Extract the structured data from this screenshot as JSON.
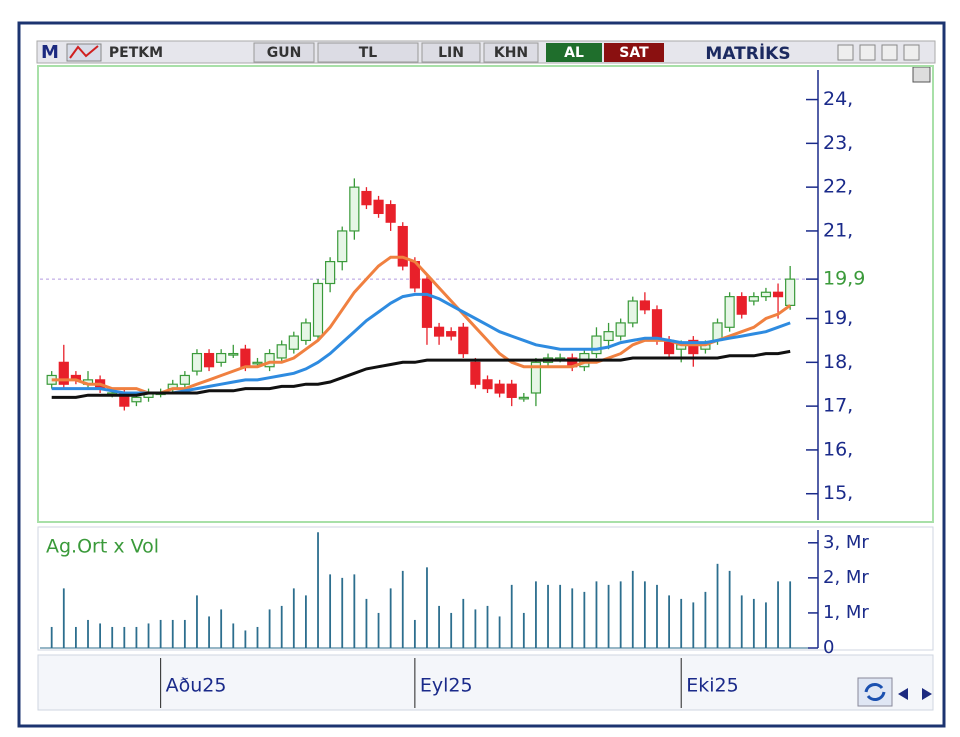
{
  "toolbar": {
    "logo": "M",
    "symbol": "PETKM",
    "period": "GUN",
    "currency": "TL",
    "scale": "LIN",
    "mode": "KHN",
    "buy": "AL",
    "sell": "SAT",
    "brand": "MATRİKS"
  },
  "chart_data": {
    "type": "candlestick",
    "xlim": [
      -0.8,
      63.3
    ],
    "xticks": [
      {
        "value": 9,
        "label": "Aðu25"
      },
      {
        "value": 30,
        "label": "Eyl25"
      },
      {
        "value": 52,
        "label": "Eki25"
      }
    ],
    "ylim": [
      14.4,
      25.2
    ],
    "yticks": [
      {
        "value": 24,
        "label": "24,"
      },
      {
        "value": 23,
        "label": "23,"
      },
      {
        "value": 22,
        "label": "22,"
      },
      {
        "value": 21,
        "label": "21,"
      },
      {
        "value": 19,
        "label": "19,"
      },
      {
        "value": 18,
        "label": "18,"
      },
      {
        "value": 17,
        "label": "17,"
      },
      {
        "value": 16,
        "label": "16,"
      },
      {
        "value": 15,
        "label": "15,"
      }
    ],
    "last_price": {
      "value": 19.9,
      "label": "19,9"
    },
    "up_color": "#3a9a3a",
    "down_color": "#e8202a",
    "open": [
      17.5,
      18.0,
      17.7,
      17.5,
      17.6,
      17.3,
      17.3,
      17.1,
      17.2,
      17.3,
      17.4,
      17.5,
      17.8,
      18.2,
      18.0,
      18.2,
      18.3,
      18.0,
      17.9,
      18.1,
      18.3,
      18.5,
      18.6,
      19.8,
      20.3,
      21.0,
      21.9,
      21.7,
      21.6,
      21.1,
      20.3,
      19.9,
      18.8,
      18.7,
      18.8,
      18.0,
      17.6,
      17.5,
      17.5,
      17.2,
      17.3,
      18.0,
      18.1,
      18.1,
      17.9,
      18.2,
      18.5,
      18.6,
      18.9,
      19.4,
      19.2,
      18.5,
      18.3,
      18.5,
      18.3,
      18.5,
      18.8,
      19.5,
      19.4,
      19.5,
      19.6,
      19.3
    ],
    "high": [
      17.8,
      18.4,
      17.8,
      17.8,
      17.7,
      17.4,
      17.4,
      17.3,
      17.4,
      17.4,
      17.6,
      17.8,
      18.3,
      18.3,
      18.3,
      18.4,
      18.4,
      18.1,
      18.3,
      18.5,
      18.7,
      19.0,
      19.9,
      20.4,
      21.1,
      22.2,
      22.0,
      21.8,
      21.7,
      21.2,
      20.4,
      20.0,
      18.9,
      18.8,
      18.9,
      18.1,
      17.7,
      17.6,
      17.6,
      17.3,
      18.1,
      18.2,
      18.2,
      18.2,
      18.3,
      18.8,
      18.9,
      19.0,
      19.5,
      19.6,
      19.3,
      18.6,
      18.5,
      18.6,
      18.5,
      19.0,
      19.6,
      19.6,
      19.6,
      19.7,
      19.8,
      20.2
    ],
    "low": [
      17.4,
      17.4,
      17.5,
      17.4,
      17.3,
      17.2,
      16.9,
      17.0,
      17.1,
      17.2,
      17.3,
      17.4,
      17.7,
      17.8,
      17.9,
      18.1,
      17.8,
      17.9,
      17.8,
      18.0,
      18.2,
      18.4,
      18.5,
      19.6,
      20.1,
      20.8,
      21.5,
      21.3,
      21.0,
      20.1,
      19.6,
      18.4,
      18.4,
      18.5,
      18.1,
      17.4,
      17.3,
      17.2,
      17.0,
      17.1,
      17.0,
      17.9,
      18.0,
      17.8,
      17.8,
      18.1,
      18.3,
      18.5,
      18.8,
      19.1,
      18.4,
      18.1,
      18.0,
      17.9,
      18.2,
      18.4,
      18.7,
      19.0,
      19.3,
      19.4,
      19.0,
      19.2
    ],
    "close": [
      17.7,
      17.5,
      17.6,
      17.6,
      17.4,
      17.3,
      17.0,
      17.2,
      17.3,
      17.3,
      17.5,
      17.7,
      18.2,
      17.9,
      18.2,
      18.2,
      17.9,
      18.0,
      18.2,
      18.4,
      18.6,
      18.9,
      19.8,
      20.3,
      21.0,
      22.0,
      21.6,
      21.4,
      21.2,
      20.2,
      19.7,
      18.8,
      18.6,
      18.6,
      18.2,
      17.5,
      17.4,
      17.3,
      17.2,
      17.2,
      18.0,
      18.1,
      18.1,
      17.9,
      18.2,
      18.6,
      18.7,
      18.9,
      19.4,
      19.2,
      18.5,
      18.2,
      18.4,
      18.2,
      18.4,
      18.9,
      19.5,
      19.1,
      19.5,
      19.6,
      19.5,
      19.9
    ],
    "series": [
      {
        "color": "#f08040",
        "values": [
          17.6,
          17.6,
          17.6,
          17.5,
          17.5,
          17.4,
          17.4,
          17.4,
          17.3,
          17.3,
          17.4,
          17.4,
          17.5,
          17.6,
          17.7,
          17.8,
          17.9,
          17.9,
          18.0,
          18.0,
          18.1,
          18.3,
          18.5,
          18.8,
          19.2,
          19.6,
          19.9,
          20.2,
          20.4,
          20.4,
          20.3,
          20.0,
          19.7,
          19.4,
          19.1,
          18.8,
          18.5,
          18.2,
          18.0,
          17.9,
          17.9,
          17.9,
          17.9,
          17.9,
          18.0,
          18.0,
          18.1,
          18.2,
          18.4,
          18.5,
          18.5,
          18.5,
          18.4,
          18.4,
          18.4,
          18.5,
          18.6,
          18.7,
          18.8,
          19.0,
          19.1,
          19.3
        ]
      },
      {
        "color": "#2e8be0",
        "values": [
          17.4,
          17.4,
          17.4,
          17.4,
          17.4,
          17.35,
          17.3,
          17.3,
          17.3,
          17.3,
          17.3,
          17.35,
          17.4,
          17.45,
          17.5,
          17.55,
          17.6,
          17.6,
          17.65,
          17.7,
          17.75,
          17.85,
          18.0,
          18.2,
          18.45,
          18.7,
          18.95,
          19.15,
          19.35,
          19.5,
          19.55,
          19.55,
          19.45,
          19.3,
          19.15,
          19.0,
          18.85,
          18.7,
          18.6,
          18.5,
          18.4,
          18.35,
          18.3,
          18.3,
          18.3,
          18.3,
          18.35,
          18.45,
          18.5,
          18.55,
          18.55,
          18.5,
          18.45,
          18.45,
          18.45,
          18.5,
          18.55,
          18.6,
          18.65,
          18.7,
          18.8,
          18.9
        ]
      },
      {
        "color": "#111111",
        "values": [
          17.2,
          17.2,
          17.2,
          17.25,
          17.25,
          17.25,
          17.25,
          17.25,
          17.3,
          17.3,
          17.3,
          17.3,
          17.3,
          17.35,
          17.35,
          17.35,
          17.4,
          17.4,
          17.4,
          17.45,
          17.45,
          17.5,
          17.5,
          17.55,
          17.65,
          17.75,
          17.85,
          17.9,
          17.95,
          18.0,
          18.0,
          18.05,
          18.05,
          18.05,
          18.05,
          18.05,
          18.05,
          18.05,
          18.05,
          18.05,
          18.05,
          18.05,
          18.05,
          18.05,
          18.05,
          18.05,
          18.05,
          18.05,
          18.1,
          18.1,
          18.1,
          18.1,
          18.1,
          18.1,
          18.1,
          18.1,
          18.15,
          18.15,
          18.15,
          18.2,
          18.2,
          18.25
        ]
      }
    ],
    "volume": {
      "title": "Ag.Ort x Vol",
      "color": "#2c6e8e",
      "ylim": [
        0,
        3.45
      ],
      "yticks": [
        {
          "value": 3,
          "label": "3, Mr"
        },
        {
          "value": 2,
          "label": "2, Mr"
        },
        {
          "value": 1,
          "label": "1, Mr"
        },
        0
      ],
      "values": [
        0.6,
        1.7,
        0.6,
        0.8,
        0.7,
        0.6,
        0.6,
        0.6,
        0.7,
        0.8,
        0.8,
        0.8,
        1.5,
        0.9,
        1.1,
        0.7,
        0.5,
        0.6,
        1.1,
        1.2,
        1.7,
        1.5,
        3.3,
        2.1,
        2.0,
        2.1,
        1.4,
        1.0,
        1.7,
        2.2,
        0.8,
        2.3,
        1.2,
        1.0,
        1.4,
        1.1,
        1.2,
        0.9,
        1.8,
        1.0,
        1.9,
        1.8,
        1.8,
        1.7,
        1.6,
        1.9,
        1.8,
        1.9,
        2.2,
        1.9,
        1.8,
        1.5,
        1.4,
        1.3,
        1.6,
        2.4,
        2.2,
        1.5,
        1.4,
        1.3,
        1.9,
        1.9
      ]
    }
  }
}
